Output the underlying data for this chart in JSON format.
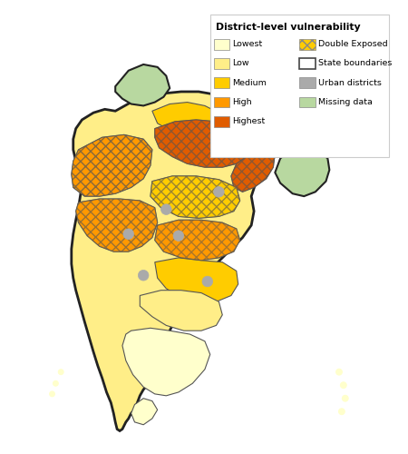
{
  "legend_title": "District-level vulnerability",
  "legend_left": [
    {
      "label": "Lowest",
      "color": "#ffffcc"
    },
    {
      "label": "Low",
      "color": "#ffee88"
    },
    {
      "label": "Medium",
      "color": "#ffcc00"
    },
    {
      "label": "High",
      "color": "#ff9900"
    },
    {
      "label": "Highest",
      "color": "#e05c00"
    }
  ],
  "legend_right": [
    {
      "label": "Double Exposed",
      "type": "hatch",
      "facecolor": "#ffcc00"
    },
    {
      "label": "State boundaries",
      "type": "border",
      "facecolor": "#ffffff"
    },
    {
      "label": "Urban districts",
      "type": "fill",
      "facecolor": "#aaaaaa"
    },
    {
      "label": "Missing data",
      "type": "fill",
      "facecolor": "#b8d8a0"
    }
  ],
  "bg_color": "#ffffff",
  "fig_w": 4.5,
  "fig_h": 5.0,
  "dpi": 100,
  "colors": {
    "lowest": "#ffffcc",
    "low": "#ffee88",
    "medium": "#ffcc00",
    "high": "#ff9900",
    "highest": "#e05c00",
    "missing": "#b8d8a0",
    "urban": "#aaaaaa"
  }
}
